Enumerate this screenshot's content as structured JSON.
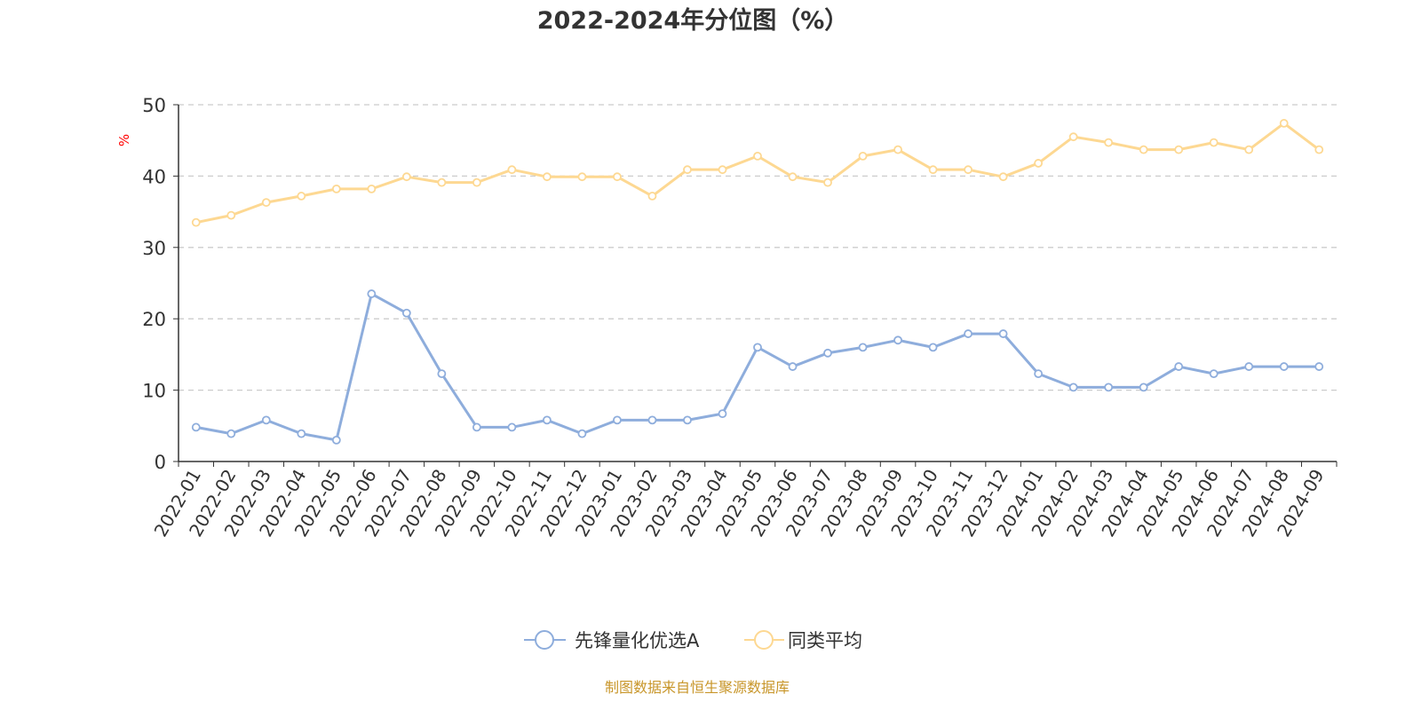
{
  "chart_data": {
    "type": "line",
    "title": "2022-2024年分位图（%）",
    "ylabel": "%",
    "xlabel": "",
    "ylim": [
      0,
      50
    ],
    "yticks": [
      0,
      10,
      20,
      30,
      40,
      50
    ],
    "grid": true,
    "legend_position": "bottom",
    "categories": [
      "2022-01",
      "2022-02",
      "2022-03",
      "2022-04",
      "2022-05",
      "2022-06",
      "2022-07",
      "2022-08",
      "2022-09",
      "2022-10",
      "2022-11",
      "2022-12",
      "2023-01",
      "2023-02",
      "2023-03",
      "2023-04",
      "2023-05",
      "2023-06",
      "2023-07",
      "2023-08",
      "2023-09",
      "2023-10",
      "2023-11",
      "2023-12",
      "2024-01",
      "2024-02",
      "2024-03",
      "2024-04",
      "2024-05",
      "2024-06",
      "2024-07",
      "2024-08",
      "2024-09"
    ],
    "series": [
      {
        "name": "先锋量化优选A",
        "color": "#8eaddc",
        "values": [
          4.8,
          3.9,
          5.8,
          3.9,
          3.0,
          23.5,
          20.8,
          12.3,
          4.8,
          4.8,
          5.8,
          3.9,
          5.8,
          5.8,
          5.8,
          6.7,
          16.0,
          13.3,
          15.2,
          16.0,
          17.0,
          16.0,
          17.9,
          17.9,
          12.3,
          10.4,
          10.4,
          10.4,
          13.3,
          12.3,
          13.3,
          13.3,
          13.3
        ]
      },
      {
        "name": "同类平均",
        "color": "#fdd892",
        "values": [
          33.5,
          34.5,
          36.3,
          37.2,
          38.2,
          38.2,
          39.9,
          39.1,
          39.1,
          40.9,
          39.9,
          39.9,
          39.9,
          37.2,
          40.9,
          40.9,
          42.8,
          39.9,
          39.1,
          42.8,
          43.7,
          40.9,
          40.9,
          39.9,
          41.8,
          45.5,
          44.7,
          43.7,
          43.7,
          44.7,
          43.7,
          47.4,
          43.7
        ]
      }
    ]
  },
  "footer": "制图数据来自恒生聚源数据库",
  "colors": {
    "ylabel": "#ff0000",
    "footer": "#c8962a",
    "axis": "#333333",
    "grid": "#cccccc"
  }
}
